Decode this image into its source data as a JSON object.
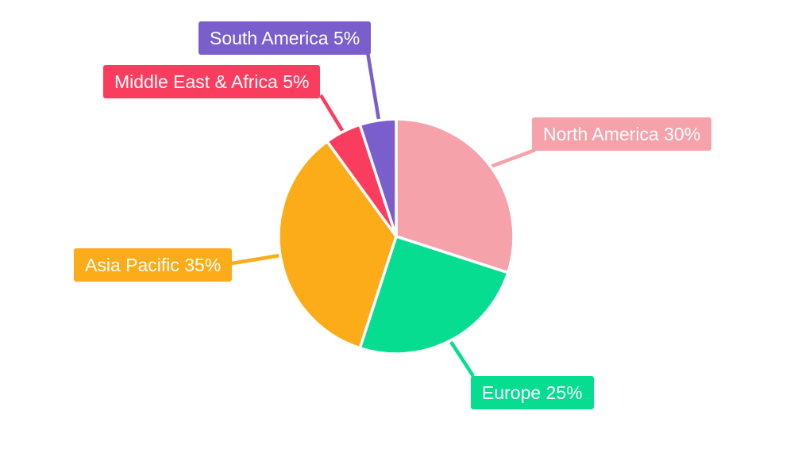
{
  "chart_data": {
    "type": "pie",
    "title": "",
    "categories": [
      "North America",
      "Europe",
      "Asia Pacific",
      "Middle East & Africa",
      "South America"
    ],
    "values": [
      30,
      25,
      35,
      5,
      5
    ],
    "unit": "%",
    "colors": [
      "#F6A2AA",
      "#06DD91",
      "#FBAC18",
      "#FA3D5F",
      "#7A5ECB"
    ],
    "display_labels": [
      "North America 30%",
      "Europe 25%",
      "Asia Pacific 35%",
      "Middle East & Africa 5%",
      "South America 5%"
    ],
    "slice_border_color": "#ffffff",
    "start_angle": "top",
    "direction": "clockwise",
    "legend": "none",
    "label_style": "callout-boxes-with-leader-lines"
  }
}
